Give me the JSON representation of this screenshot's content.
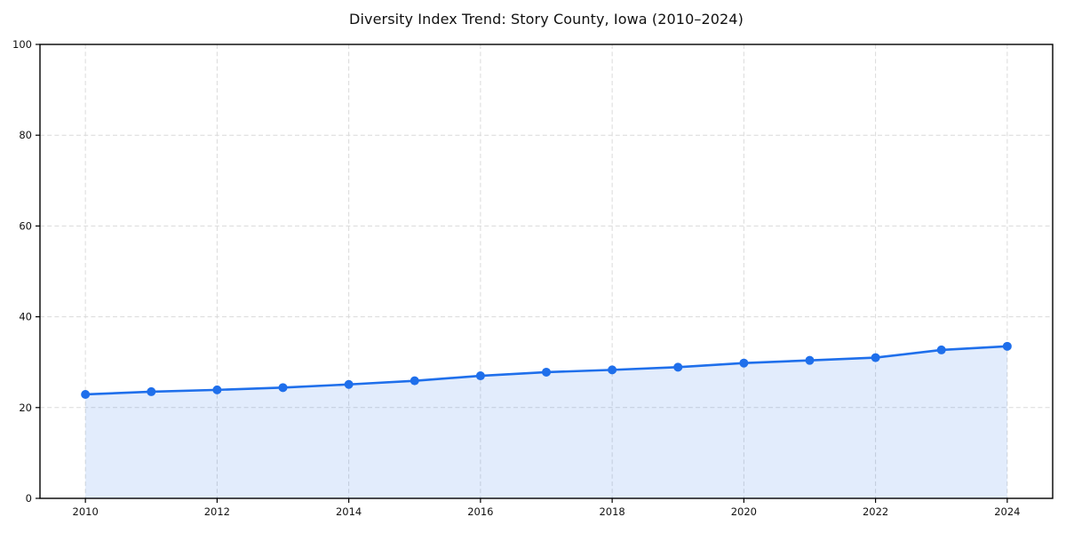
{
  "title": "Diversity Index Trend: Story County, Iowa (2010–2024)",
  "chart_data": {
    "type": "area",
    "series_name": "Diversity Index",
    "x": [
      2010,
      2011,
      2012,
      2013,
      2014,
      2015,
      2016,
      2017,
      2018,
      2019,
      2020,
      2021,
      2022,
      2023,
      2024
    ],
    "values": [
      22.9,
      23.5,
      23.9,
      24.4,
      25.1,
      25.9,
      27.0,
      27.8,
      28.3,
      28.9,
      29.8,
      30.4,
      31.0,
      32.7,
      33.5
    ],
    "title": "Diversity Index Trend: Story County, Iowa (2010–2024)",
    "xlabel": "",
    "ylabel": "",
    "xlim": [
      2009.31,
      2024.69
    ],
    "ylim": [
      0,
      100
    ],
    "xticks": [
      2010,
      2012,
      2014,
      2016,
      2018,
      2020,
      2022,
      2024
    ],
    "yticks": [
      0,
      20,
      40,
      60,
      80,
      100
    ],
    "grid": "dashed",
    "legend": "none",
    "colors": {
      "line": "#1f6feb",
      "marker": "#1f6feb",
      "fill": "rgba(31,111,235,0.13)",
      "grid": "#dadada",
      "spine": "#000000",
      "tick_label": "#111111",
      "background": "#ffffff"
    }
  }
}
